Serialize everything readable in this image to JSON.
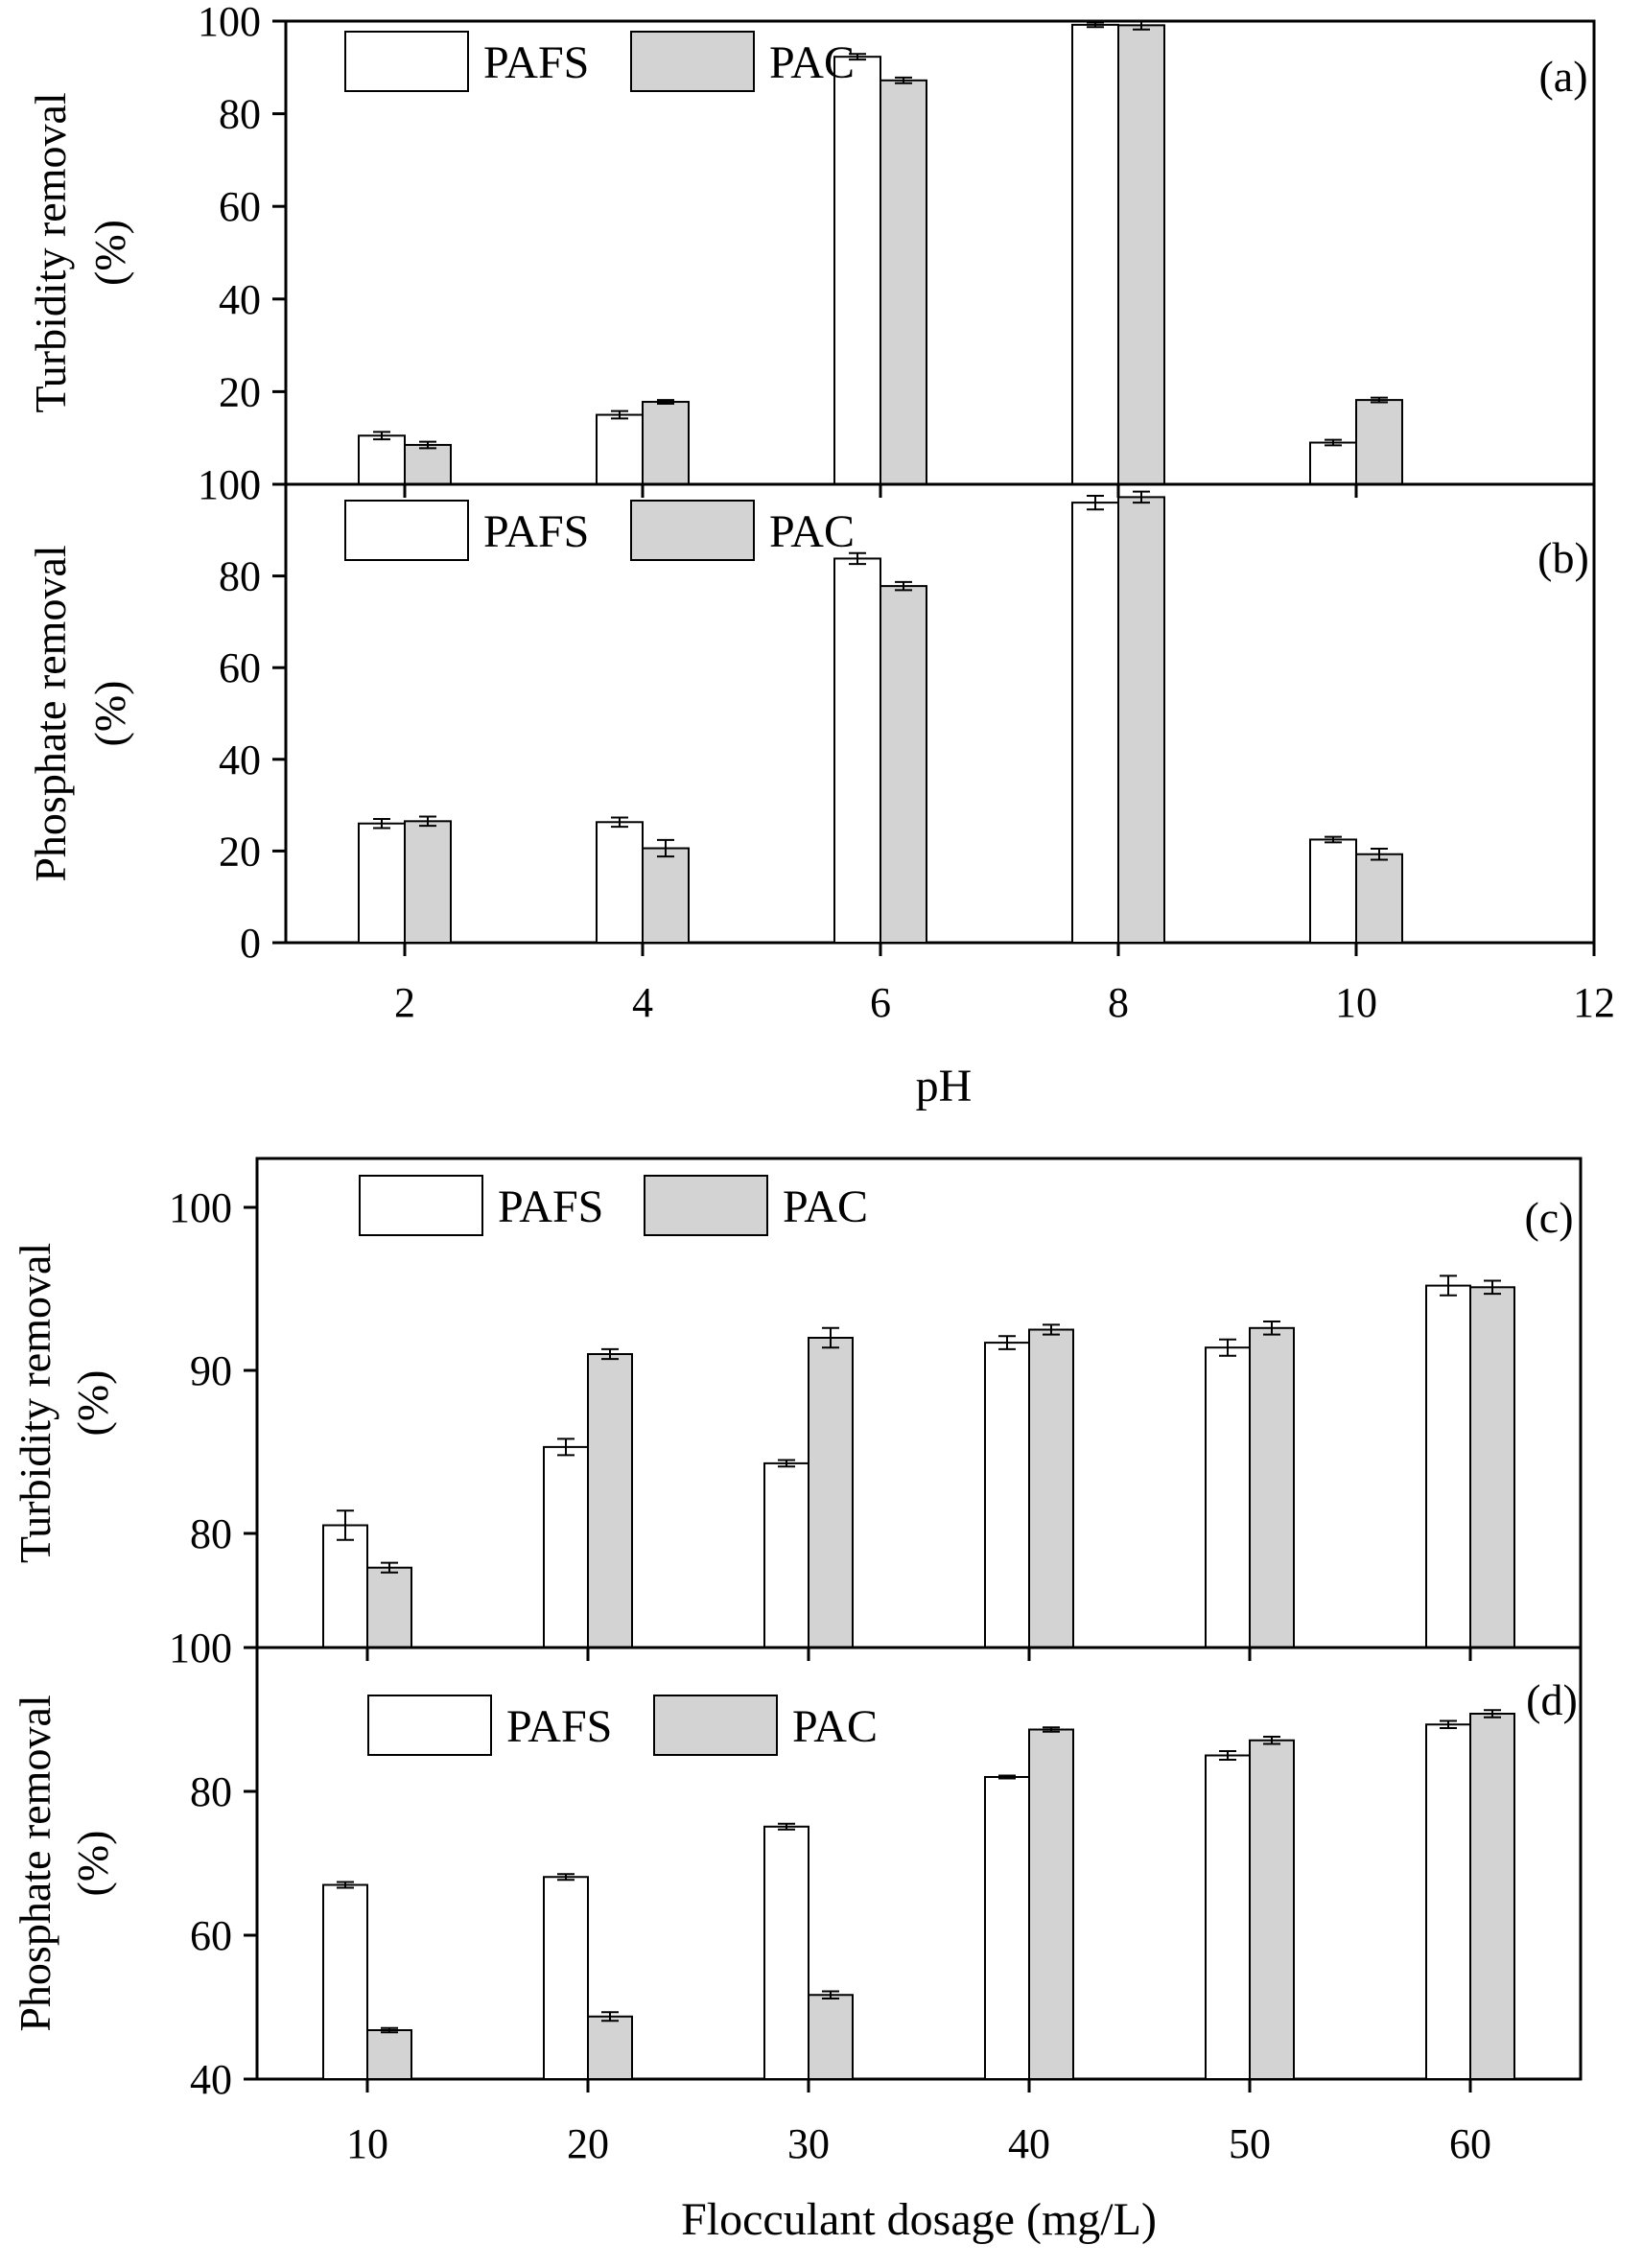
{
  "figure": {
    "colors": {
      "pafs_fill": "#ffffff",
      "pac_fill": "#d3d3d3",
      "stroke": "#000000"
    }
  },
  "chart_data": [
    {
      "id": "a",
      "type": "bar",
      "panel_label": "(a)",
      "ylabel_lines": [
        "Turbidity removal",
        "(%)"
      ],
      "xlabel": "",
      "x": [
        2,
        4,
        6,
        8,
        10
      ],
      "xlim": [
        1,
        12
      ],
      "ylim": [
        0,
        100
      ],
      "xticks": [
        2,
        4,
        6,
        8,
        10,
        12
      ],
      "yticks": [
        0,
        20,
        40,
        60,
        80,
        100
      ],
      "show_xtick_labels": false,
      "legend": {
        "placement": "top-left",
        "labels": [
          "PAFS",
          "PAC"
        ]
      },
      "series": [
        {
          "name": "PAFS",
          "values": [
            10.5,
            15.0,
            92.3,
            99.2,
            9.0
          ],
          "errors": [
            0.8,
            0.8,
            0.6,
            0.5,
            0.6
          ]
        },
        {
          "name": "PAC",
          "values": [
            8.5,
            17.8,
            87.2,
            99.1,
            18.2
          ],
          "errors": [
            0.7,
            0.4,
            0.6,
            0.9,
            0.5
          ]
        }
      ]
    },
    {
      "id": "b",
      "type": "bar",
      "panel_label": "(b)",
      "ylabel_lines": [
        "Phosphate removal",
        "(%)"
      ],
      "xlabel": "pH",
      "x": [
        2,
        4,
        6,
        8,
        10
      ],
      "xlim": [
        1,
        12
      ],
      "ylim": [
        0,
        100
      ],
      "xticks": [
        2,
        4,
        6,
        8,
        10,
        12
      ],
      "yticks": [
        0,
        20,
        40,
        60,
        80,
        100
      ],
      "show_xtick_labels": true,
      "legend": {
        "placement": "top-left",
        "labels": [
          "PAFS",
          "PAC"
        ]
      },
      "series": [
        {
          "name": "PAFS",
          "values": [
            26.0,
            26.3,
            83.8,
            96.0,
            22.5
          ],
          "errors": [
            1.0,
            1.0,
            1.2,
            1.5,
            0.6
          ]
        },
        {
          "name": "PAC",
          "values": [
            26.5,
            20.6,
            77.8,
            97.2,
            19.3
          ],
          "errors": [
            1.0,
            1.8,
            0.9,
            1.2,
            1.2
          ]
        }
      ]
    },
    {
      "id": "c",
      "type": "bar",
      "panel_label": "(c)",
      "ylabel_lines": [
        "Turbidity removal",
        "(%)"
      ],
      "xlabel": "",
      "x": [
        10,
        20,
        30,
        40,
        50,
        60
      ],
      "xlim": [
        5,
        65
      ],
      "ylim": [
        73,
        103
      ],
      "xticks": [
        10,
        20,
        30,
        40,
        50,
        60
      ],
      "yticks": [
        80,
        90,
        100
      ],
      "show_xtick_labels": false,
      "legend": {
        "placement": "top-left",
        "labels": [
          "PAFS",
          "PAC"
        ]
      },
      "series": [
        {
          "name": "PAFS",
          "values": [
            80.5,
            85.3,
            84.3,
            91.7,
            91.4,
            95.2
          ],
          "errors": [
            0.9,
            0.5,
            0.2,
            0.4,
            0.5,
            0.6
          ]
        },
        {
          "name": "PAC",
          "values": [
            77.9,
            91.0,
            92.0,
            92.5,
            92.6,
            95.1
          ],
          "errors": [
            0.3,
            0.3,
            0.6,
            0.3,
            0.4,
            0.4
          ]
        }
      ]
    },
    {
      "id": "d",
      "type": "bar",
      "panel_label": "(d)",
      "ylabel_lines": [
        "Phosphate removal",
        "(%)"
      ],
      "xlabel": "Flocculant dosage (mg/L)",
      "x": [
        10,
        20,
        30,
        40,
        50,
        60
      ],
      "xlim": [
        5,
        65
      ],
      "ylim": [
        40,
        100
      ],
      "xticks": [
        10,
        20,
        30,
        40,
        50,
        60
      ],
      "yticks": [
        40,
        60,
        80,
        100
      ],
      "show_xtick_labels": true,
      "legend": {
        "placement": "top-left",
        "labels": [
          "PAFS",
          "PAC"
        ]
      },
      "series": [
        {
          "name": "PAFS",
          "values": [
            67.0,
            68.1,
            75.1,
            82.0,
            85.0,
            89.3
          ],
          "errors": [
            0.4,
            0.4,
            0.4,
            0.2,
            0.6,
            0.5
          ]
        },
        {
          "name": "PAC",
          "values": [
            46.8,
            48.7,
            51.7,
            88.6,
            87.1,
            90.8
          ],
          "errors": [
            0.3,
            0.6,
            0.5,
            0.3,
            0.5,
            0.5
          ]
        }
      ]
    }
  ]
}
